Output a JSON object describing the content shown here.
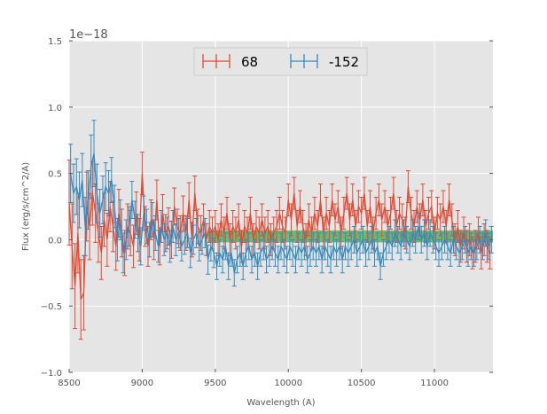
{
  "chart_data": {
    "type": "line",
    "title": "",
    "xlabel": "Wavelength (A)",
    "ylabel": "Flux (erg/s/cm^2/A)",
    "y_scale_label": "1e−18",
    "y_scale": 1e-18,
    "xlim": [
      8500,
      11400
    ],
    "ylim": [
      -1.0,
      1.5
    ],
    "xticks": [
      8500,
      9000,
      9500,
      10000,
      10500,
      11000
    ],
    "xtick_labels": [
      "8500",
      "9000",
      "9500",
      "10000",
      "10500",
      "11000"
    ],
    "yticks": [
      -1.0,
      -0.5,
      0.0,
      0.5,
      1.0,
      1.5
    ],
    "ytick_labels": [
      "−1.0",
      "−0.5",
      "0.0",
      "0.5",
      "1.0",
      "1.5"
    ],
    "grid": true,
    "legend_position": "top-center",
    "band": {
      "x_start": 9450,
      "x_end": 11400,
      "y_low": -0.02,
      "y_high": 0.07,
      "color": "#2ca02c"
    },
    "series": [
      {
        "name": "68",
        "color": "#e24a33",
        "x": [
          8500,
          8520,
          8540,
          8560,
          8580,
          8600,
          8620,
          8640,
          8660,
          8680,
          8700,
          8720,
          8740,
          8760,
          8780,
          8800,
          8820,
          8840,
          8860,
          8880,
          8900,
          8920,
          8940,
          8960,
          8980,
          9000,
          9020,
          9040,
          9060,
          9080,
          9100,
          9120,
          9140,
          9160,
          9180,
          9200,
          9220,
          9240,
          9260,
          9280,
          9300,
          9320,
          9340,
          9360,
          9380,
          9400,
          9420,
          9440,
          9460,
          9480,
          9500,
          9520,
          9540,
          9560,
          9580,
          9600,
          9620,
          9640,
          9660,
          9680,
          9700,
          9720,
          9740,
          9760,
          9780,
          9800,
          9820,
          9840,
          9860,
          9880,
          9900,
          9920,
          9940,
          9960,
          9980,
          10000,
          10020,
          10040,
          10060,
          10080,
          10100,
          10120,
          10140,
          10160,
          10180,
          10200,
          10220,
          10240,
          10260,
          10280,
          10300,
          10320,
          10340,
          10360,
          10380,
          10400,
          10420,
          10440,
          10460,
          10480,
          10500,
          10520,
          10540,
          10560,
          10580,
          10600,
          10620,
          10640,
          10660,
          10680,
          10700,
          10720,
          10740,
          10760,
          10780,
          10800,
          10820,
          10840,
          10860,
          10880,
          10900,
          10920,
          10940,
          10960,
          10980,
          11000,
          11020,
          11040,
          11060,
          11080,
          11100,
          11120,
          11140,
          11160,
          11180,
          11200,
          11220,
          11240,
          11260,
          11280,
          11300,
          11320,
          11340,
          11360,
          11380
        ],
        "y": [
          0.28,
          -0.05,
          -0.35,
          0.05,
          -0.45,
          -0.4,
          0.25,
          0.1,
          0.35,
          0.2,
          0.05,
          -0.1,
          0.15,
          0.0,
          0.25,
          0.1,
          -0.05,
          0.2,
          0.05,
          -0.1,
          0.1,
          0.05,
          -0.05,
          0.2,
          0.0,
          0.5,
          0.1,
          -0.05,
          0.15,
          0.0,
          0.3,
          -0.05,
          0.2,
          0.05,
          0.1,
          0.0,
          0.25,
          0.1,
          0.05,
          0.2,
          0.05,
          0.3,
          0.0,
          0.35,
          0.1,
          0.05,
          0.15,
          0.0,
          0.1,
          0.05,
          0.1,
          0.0,
          0.15,
          0.05,
          0.2,
          0.0,
          0.1,
          0.05,
          0.15,
          -0.05,
          0.1,
          0.05,
          0.2,
          0.0,
          0.1,
          0.05,
          0.15,
          0.05,
          0.1,
          0.0,
          0.05,
          0.1,
          0.2,
          0.1,
          0.05,
          0.3,
          0.15,
          0.35,
          0.1,
          0.25,
          0.1,
          0.0,
          0.15,
          0.05,
          0.2,
          0.1,
          0.3,
          0.05,
          0.2,
          0.1,
          0.3,
          0.15,
          0.25,
          0.05,
          0.2,
          0.35,
          0.15,
          0.3,
          0.1,
          0.25,
          0.2,
          0.35,
          0.1,
          0.25,
          0.05,
          0.2,
          0.3,
          0.15,
          0.25,
          0.1,
          0.2,
          0.35,
          0.1,
          0.2,
          0.15,
          0.05,
          0.4,
          0.2,
          0.1,
          0.25,
          0.15,
          0.3,
          0.1,
          0.2,
          0.25,
          0.05,
          0.2,
          0.15,
          0.25,
          0.1,
          0.3,
          0.15,
          0.0,
          0.1,
          -0.05,
          0.05,
          -0.05,
          0.0,
          -0.1,
          -0.05,
          0.05,
          -0.1,
          0.0,
          -0.05,
          -0.1
        ],
        "err": [
          0.32,
          0.32,
          0.32,
          0.3,
          0.3,
          0.28,
          0.26,
          0.25,
          0.24,
          0.22,
          0.22,
          0.2,
          0.2,
          0.2,
          0.19,
          0.19,
          0.18,
          0.18,
          0.18,
          0.17,
          0.17,
          0.17,
          0.16,
          0.16,
          0.16,
          0.16,
          0.15,
          0.15,
          0.15,
          0.15,
          0.15,
          0.14,
          0.14,
          0.14,
          0.14,
          0.14,
          0.14,
          0.13,
          0.13,
          0.13,
          0.13,
          0.13,
          0.13,
          0.13,
          0.13,
          0.13,
          0.12,
          0.12,
          0.12,
          0.12,
          0.12,
          0.12,
          0.12,
          0.12,
          0.12,
          0.12,
          0.12,
          0.12,
          0.12,
          0.12,
          0.12,
          0.12,
          0.12,
          0.12,
          0.12,
          0.12,
          0.12,
          0.12,
          0.12,
          0.12,
          0.12,
          0.12,
          0.12,
          0.12,
          0.12,
          0.12,
          0.12,
          0.12,
          0.12,
          0.12,
          0.12,
          0.12,
          0.12,
          0.12,
          0.12,
          0.12,
          0.12,
          0.12,
          0.12,
          0.12,
          0.12,
          0.12,
          0.12,
          0.12,
          0.12,
          0.12,
          0.12,
          0.12,
          0.12,
          0.12,
          0.12,
          0.12,
          0.12,
          0.12,
          0.12,
          0.12,
          0.12,
          0.12,
          0.12,
          0.12,
          0.12,
          0.12,
          0.12,
          0.12,
          0.12,
          0.12,
          0.12,
          0.12,
          0.12,
          0.12,
          0.12,
          0.12,
          0.12,
          0.12,
          0.12,
          0.12,
          0.12,
          0.12,
          0.12,
          0.12,
          0.12,
          0.12,
          0.12,
          0.12,
          0.12,
          0.12,
          0.12,
          0.12,
          0.12,
          0.12,
          0.12,
          0.12,
          0.12,
          0.12,
          0.12
        ]
      },
      {
        "name": "-152",
        "color": "#348abd",
        "x": [
          8510,
          8530,
          8550,
          8570,
          8590,
          8610,
          8630,
          8650,
          8670,
          8690,
          8710,
          8730,
          8750,
          8770,
          8790,
          8810,
          8830,
          8850,
          8870,
          8890,
          8910,
          8930,
          8950,
          8970,
          8990,
          9010,
          9030,
          9050,
          9070,
          9090,
          9110,
          9130,
          9150,
          9170,
          9190,
          9210,
          9230,
          9250,
          9270,
          9290,
          9310,
          9330,
          9350,
          9370,
          9390,
          9410,
          9430,
          9450,
          9470,
          9490,
          9510,
          9530,
          9550,
          9570,
          9590,
          9610,
          9630,
          9650,
          9670,
          9690,
          9710,
          9730,
          9750,
          9770,
          9790,
          9810,
          9830,
          9850,
          9870,
          9890,
          9910,
          9930,
          9950,
          9970,
          9990,
          10010,
          10030,
          10050,
          10070,
          10090,
          10110,
          10130,
          10150,
          10170,
          10190,
          10210,
          10230,
          10250,
          10270,
          10290,
          10310,
          10330,
          10350,
          10370,
          10390,
          10410,
          10430,
          10450,
          10470,
          10490,
          10510,
          10530,
          10550,
          10570,
          10590,
          10610,
          10630,
          10650,
          10670,
          10690,
          10710,
          10730,
          10750,
          10770,
          10790,
          10810,
          10830,
          10850,
          10870,
          10890,
          10910,
          10930,
          10950,
          10970,
          10990,
          11010,
          11030,
          11050,
          11070,
          11090,
          11110,
          11130,
          11150,
          11170,
          11190,
          11210,
          11230,
          11250,
          11270,
          11290,
          11310,
          11330,
          11350,
          11370,
          11390
        ],
        "y": [
          0.5,
          0.35,
          0.4,
          0.3,
          0.45,
          0.1,
          0.3,
          0.55,
          0.65,
          0.35,
          0.2,
          0.3,
          0.4,
          0.35,
          0.45,
          0.25,
          0.0,
          0.15,
          -0.1,
          0.0,
          0.1,
          0.3,
          0.15,
          0.05,
          -0.05,
          0.2,
          0.1,
          0.0,
          0.15,
          0.05,
          -0.05,
          0.1,
          0.0,
          0.05,
          -0.05,
          0.1,
          0.0,
          0.05,
          -0.05,
          0.0,
          0.05,
          -0.1,
          0.0,
          0.05,
          -0.05,
          0.0,
          0.05,
          -0.15,
          -0.05,
          -0.1,
          -0.2,
          -0.1,
          -0.15,
          -0.05,
          -0.2,
          -0.1,
          -0.25,
          -0.15,
          -0.1,
          -0.2,
          -0.1,
          -0.05,
          -0.15,
          -0.1,
          -0.2,
          -0.1,
          -0.05,
          -0.15,
          -0.1,
          -0.05,
          -0.1,
          -0.15,
          -0.05,
          -0.1,
          -0.15,
          -0.05,
          -0.1,
          -0.15,
          -0.05,
          -0.1,
          -0.05,
          -0.15,
          -0.1,
          -0.05,
          -0.1,
          -0.05,
          -0.15,
          -0.05,
          -0.1,
          -0.15,
          -0.05,
          -0.1,
          -0.05,
          -0.15,
          -0.05,
          -0.1,
          -0.05,
          0.0,
          -0.1,
          -0.05,
          0.0,
          -0.1,
          -0.05,
          0.0,
          -0.1,
          -0.05,
          -0.2,
          -0.1,
          -0.05,
          0.0,
          -0.05,
          0.05,
          0.0,
          -0.05,
          0.05,
          0.0,
          -0.05,
          0.05,
          0.0,
          0.1,
          0.0,
          0.05,
          -0.05,
          0.05,
          0.0,
          -0.05,
          -0.1,
          -0.05,
          0.0,
          -0.05,
          -0.1,
          0.0,
          -0.05,
          -0.1,
          -0.05,
          0.0,
          -0.1,
          -0.05,
          -0.1,
          -0.05,
          0.0,
          -0.05,
          0.05,
          -0.05,
          0.0
        ],
        "err": [
          0.22,
          0.22,
          0.21,
          0.21,
          0.2,
          0.22,
          0.22,
          0.24,
          0.25,
          0.22,
          0.18,
          0.18,
          0.18,
          0.17,
          0.17,
          0.16,
          0.16,
          0.15,
          0.15,
          0.15,
          0.15,
          0.14,
          0.14,
          0.14,
          0.14,
          0.13,
          0.13,
          0.13,
          0.13,
          0.13,
          0.12,
          0.12,
          0.12,
          0.12,
          0.12,
          0.12,
          0.12,
          0.11,
          0.11,
          0.11,
          0.11,
          0.11,
          0.11,
          0.11,
          0.11,
          0.11,
          0.11,
          0.11,
          0.11,
          0.11,
          0.1,
          0.1,
          0.1,
          0.1,
          0.1,
          0.1,
          0.1,
          0.1,
          0.1,
          0.1,
          0.1,
          0.1,
          0.1,
          0.1,
          0.1,
          0.1,
          0.1,
          0.1,
          0.1,
          0.1,
          0.1,
          0.1,
          0.1,
          0.1,
          0.1,
          0.1,
          0.1,
          0.1,
          0.1,
          0.1,
          0.1,
          0.1,
          0.1,
          0.1,
          0.1,
          0.1,
          0.1,
          0.1,
          0.1,
          0.1,
          0.1,
          0.1,
          0.1,
          0.1,
          0.1,
          0.1,
          0.1,
          0.1,
          0.1,
          0.1,
          0.1,
          0.1,
          0.1,
          0.1,
          0.1,
          0.1,
          0.1,
          0.1,
          0.1,
          0.1,
          0.1,
          0.1,
          0.1,
          0.1,
          0.1,
          0.1,
          0.1,
          0.1,
          0.1,
          0.1,
          0.1,
          0.1,
          0.1,
          0.1,
          0.1,
          0.1,
          0.1,
          0.1,
          0.1,
          0.1,
          0.1,
          0.1,
          0.1,
          0.1,
          0.1,
          0.1,
          0.1,
          0.1,
          0.1,
          0.1,
          0.1,
          0.1,
          0.1,
          0.1,
          0.1
        ]
      }
    ]
  }
}
